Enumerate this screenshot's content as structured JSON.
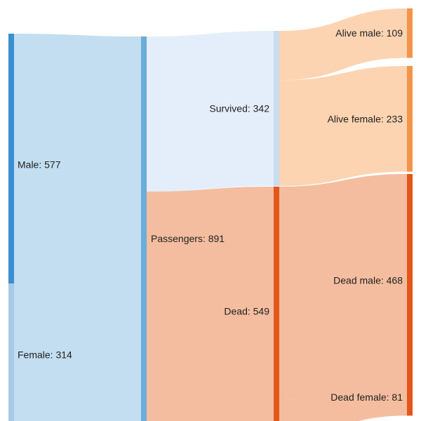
{
  "chart_data": {
    "type": "sankey",
    "nodes": [
      {
        "id": "male",
        "label": "Male: 577",
        "name": "Male",
        "value": 577,
        "color": "#3b8fd0"
      },
      {
        "id": "female",
        "label": "Female: 314",
        "name": "Female",
        "value": 314,
        "color": "#a6cbe6"
      },
      {
        "id": "passengers",
        "label": "Passengers: 891",
        "name": "Passengers",
        "value": 891,
        "color": "#6aaed8"
      },
      {
        "id": "survived",
        "label": "Survived: 342",
        "name": "Survived",
        "value": 342,
        "color": "#c9dcf0"
      },
      {
        "id": "dead",
        "label": "Dead: 549",
        "name": "Dead",
        "value": 549,
        "color": "#e4561a"
      },
      {
        "id": "alive_male",
        "label": "Alive male: 109",
        "name": "Alive male",
        "value": 109,
        "color": "#f39449"
      },
      {
        "id": "alive_female",
        "label": "Alive female: 233",
        "name": "Alive female",
        "value": 233,
        "color": "#f39449"
      },
      {
        "id": "dead_male",
        "label": "Dead male: 468",
        "name": "Dead male",
        "value": 468,
        "color": "#e4561a"
      },
      {
        "id": "dead_female",
        "label": "Dead female: 81",
        "name": "Dead female",
        "value": 81,
        "color": "#e4561a"
      }
    ],
    "links": [
      {
        "source": "male",
        "target": "passengers",
        "value": 577,
        "color": "#c3def0"
      },
      {
        "source": "female",
        "target": "passengers",
        "value": 314,
        "color": "#c3def0"
      },
      {
        "source": "passengers",
        "target": "survived",
        "value": 342,
        "color": "#e4eefa"
      },
      {
        "source": "passengers",
        "target": "dead",
        "value": 549,
        "color": "#f4bd9f"
      },
      {
        "source": "survived",
        "target": "alive_male",
        "value": 109,
        "color": "#fcd4b2"
      },
      {
        "source": "survived",
        "target": "alive_female",
        "value": 233,
        "color": "#fcd4b2"
      },
      {
        "source": "dead",
        "target": "dead_male",
        "value": 468,
        "color": "#f4bd9f"
      },
      {
        "source": "dead",
        "target": "dead_female",
        "value": 81,
        "color": "#f4bd9f"
      }
    ]
  }
}
